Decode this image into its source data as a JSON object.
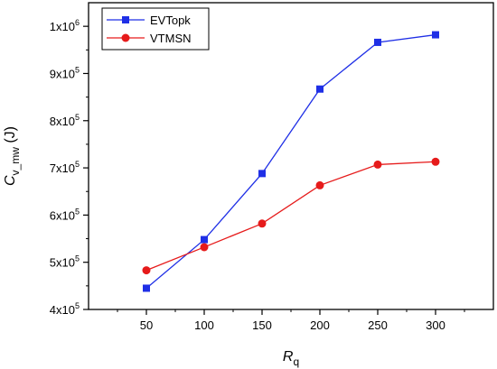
{
  "chart_data": {
    "type": "line",
    "xlabel": "R_q",
    "xlabel_main": "R",
    "xlabel_sub": "q",
    "ylabel": "C_v_mw (J)",
    "ylabel_main": "C",
    "ylabel_sub": "v_mw",
    "ylabel_unit": " (J)",
    "x": [
      50,
      100,
      150,
      200,
      250,
      300
    ],
    "xlim": [
      0,
      350
    ],
    "xticks": [
      50,
      100,
      150,
      200,
      250,
      300
    ],
    "ylim": [
      400000,
      1050000
    ],
    "yticks": [
      {
        "value": 400000,
        "mantissa": "4x10",
        "exp": "5"
      },
      {
        "value": 500000,
        "mantissa": "5x10",
        "exp": "5"
      },
      {
        "value": 600000,
        "mantissa": "6x10",
        "exp": "5"
      },
      {
        "value": 700000,
        "mantissa": "7x10",
        "exp": "5"
      },
      {
        "value": 800000,
        "mantissa": "8x10",
        "exp": "5"
      },
      {
        "value": 900000,
        "mantissa": "9x10",
        "exp": "5"
      },
      {
        "value": 1000000,
        "mantissa": "1x10",
        "exp": "6"
      }
    ],
    "grid": false,
    "legend_position": "top-left",
    "series": [
      {
        "name": "EVTopk",
        "color": "#1f2fe6",
        "marker": "square",
        "values": [
          445000,
          548000,
          688000,
          867000,
          966000,
          982000
        ]
      },
      {
        "name": "VTMSN",
        "color": "#e61b1b",
        "marker": "circle",
        "values": [
          483000,
          532000,
          582000,
          663000,
          707000,
          713000
        ]
      }
    ]
  }
}
